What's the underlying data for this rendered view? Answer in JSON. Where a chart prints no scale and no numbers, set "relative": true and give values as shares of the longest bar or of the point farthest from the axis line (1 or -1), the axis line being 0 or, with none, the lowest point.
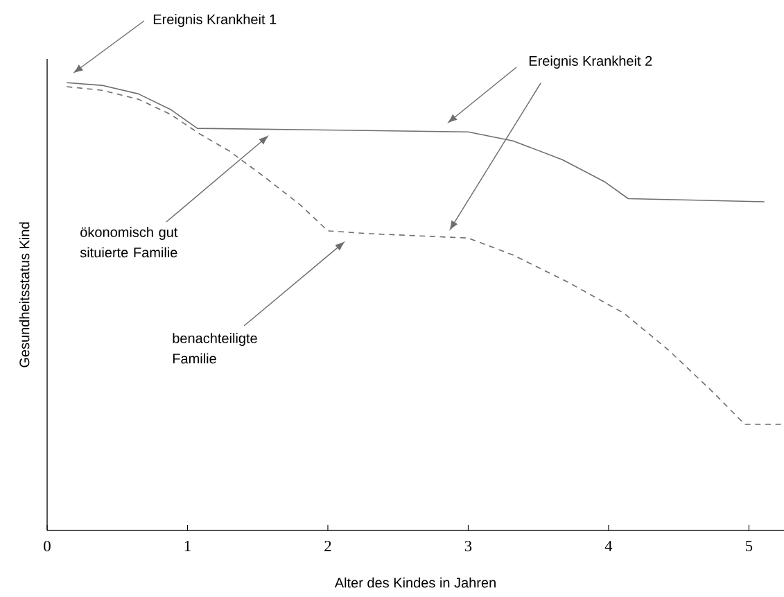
{
  "chart_data": {
    "type": "line",
    "relative": true,
    "xlabel": "Alter des Kindes in Jahren",
    "ylabel": "Gesundheitsstatus Kind",
    "xlim": [
      0,
      5.25
    ],
    "xticks": [
      0,
      1,
      2,
      3,
      4,
      5
    ],
    "marker": "none",
    "series": [
      {
        "color": "#6e6e6e",
        "line_style": "solid",
        "x": [
          0.14,
          0.39,
          0.65,
          0.88,
          1.07,
          1.8,
          3.0,
          3.32,
          3.67,
          3.97,
          4.14,
          5.11
        ],
        "values": [
          1.0,
          0.994,
          0.975,
          0.94,
          0.898,
          0.895,
          0.89,
          0.87,
          0.828,
          0.779,
          0.741,
          0.734
        ]
      },
      {
        "color": "#6e6e6e",
        "line_style": "dashed",
        "x": [
          0.14,
          0.39,
          0.65,
          0.88,
          1.09,
          1.3,
          1.55,
          1.8,
          2.0,
          2.28,
          3.0,
          3.32,
          3.72,
          4.11,
          4.43,
          4.74,
          4.97,
          5.24
        ],
        "values": [
          0.991,
          0.983,
          0.963,
          0.929,
          0.885,
          0.847,
          0.789,
          0.728,
          0.669,
          0.663,
          0.653,
          0.615,
          0.553,
          0.485,
          0.402,
          0.31,
          0.237,
          0.237
        ]
      }
    ],
    "annotations": [
      "Ereignis Krankheit 1",
      "Ereignis Krankheit 2",
      "ökonomisch gut situierte Familie",
      "benachteiligte Familie"
    ]
  }
}
